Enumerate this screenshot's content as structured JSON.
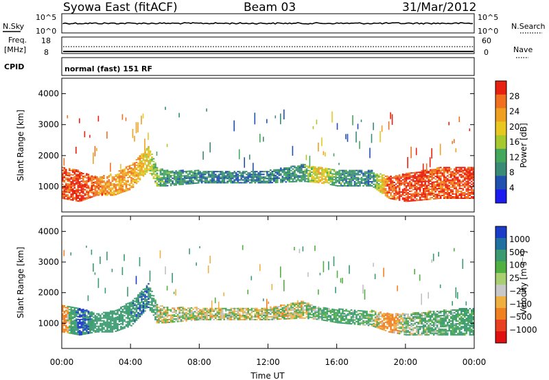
{
  "header": {
    "title": "Syowa East (fitACF)",
    "beam": "Beam 03",
    "date": "31/Mar/2012"
  },
  "top_panels": {
    "nsky_label": "N.Sky",
    "nsky_ticks": [
      "10^5",
      "10^0"
    ],
    "nsearch_label": "N.Search",
    "nsearch_ticks": [
      "10^5",
      "10^0"
    ],
    "freq_label": "Freq.",
    "freq_unit": "[MHz]",
    "freq_ticks": [
      "18",
      "8"
    ],
    "nave_label": "Nave",
    "nave_ticks": [
      "60",
      "0"
    ],
    "cpid_label": "CPID",
    "cpid_value": "normal (fast) 151 RF"
  },
  "colors": {
    "power_scale": [
      "#1c1cf0",
      "#2050b0",
      "#3a8a78",
      "#44a85a",
      "#a8c830",
      "#e8c820",
      "#f0a020",
      "#f07020",
      "#e82010"
    ],
    "velocity_scale": [
      "#1a3cc8",
      "#2070a0",
      "#3a9a70",
      "#50b040",
      "#a8d070",
      "#c8c8c8",
      "#f0b040",
      "#f08020",
      "#e84020",
      "#e01010"
    ],
    "ground_scatter": "#c0c0c0"
  },
  "chart_data": [
    {
      "type": "heatmap",
      "name": "power",
      "ylabel": "Slant Range [km]",
      "yticks": [
        "1000",
        "2000",
        "3000",
        "4000"
      ],
      "ylim": [
        180,
        4500
      ],
      "xlim": [
        0,
        24
      ],
      "colorbar_label": "Power [dB]",
      "colorbar_ticks": [
        "4",
        "8",
        "12",
        "16",
        "20",
        "24",
        "28"
      ],
      "echo_band": {
        "hours": [
          0.0,
          1.0,
          2.0,
          3.0,
          4.0,
          5.0,
          5.5,
          6.0,
          8.0,
          10.0,
          12.0,
          14.0,
          15.0,
          16.0,
          18.0,
          19.0,
          20.0,
          22.0,
          24.0
        ],
        "range_lo": [
          600,
          500,
          700,
          700,
          900,
          1500,
          1000,
          1000,
          1100,
          1100,
          1100,
          1150,
          1100,
          1000,
          1000,
          600,
          500,
          600,
          600
        ],
        "range_hi": [
          1600,
          1500,
          1300,
          1400,
          1700,
          2300,
          1600,
          1500,
          1500,
          1500,
          1500,
          1700,
          1600,
          1500,
          1500,
          1300,
          1400,
          1600,
          1600
        ],
        "power_db": [
          26,
          28,
          24,
          22,
          22,
          18,
          12,
          10,
          8,
          8,
          8,
          10,
          20,
          10,
          8,
          26,
          28,
          26,
          28
        ]
      }
    },
    {
      "type": "heatmap",
      "name": "velocity",
      "ylabel": "Slant Range [km]",
      "yticks": [
        "1000",
        "2000",
        "3000",
        "4000"
      ],
      "ylim": [
        180,
        4500
      ],
      "xlim": [
        0,
        24
      ],
      "xlabel": "Time UT",
      "xticks": [
        "00:00",
        "04:00",
        "08:00",
        "12:00",
        "16:00",
        "20:00",
        "00:00"
      ],
      "colorbar_label": "Velocity [m s⁻¹]",
      "colorbar_ticks": [
        "1000",
        "500",
        "100",
        "25",
        "−25",
        "−100",
        "−500",
        "−1000"
      ],
      "echo_band": {
        "hours": [
          0.0,
          1.0,
          2.0,
          3.0,
          4.0,
          5.0,
          5.5,
          6.0,
          8.0,
          10.0,
          12.0,
          14.0,
          15.0,
          16.0,
          18.0,
          19.0,
          20.0,
          22.0,
          24.0
        ],
        "range_lo": [
          700,
          600,
          700,
          700,
          900,
          1500,
          1000,
          1000,
          1100,
          1100,
          1100,
          1150,
          1100,
          1000,
          900,
          700,
          600,
          600,
          600
        ],
        "range_hi": [
          1600,
          1500,
          1300,
          1400,
          1700,
          2300,
          1600,
          1500,
          1500,
          1500,
          1500,
          1700,
          1500,
          1450,
          1400,
          1300,
          1300,
          1400,
          1500
        ],
        "velocity_ms": [
          -300,
          600,
          300,
          200,
          400,
          500,
          0,
          0,
          0,
          0,
          0,
          0,
          100,
          150,
          80,
          -200,
          60,
          100,
          200
        ]
      }
    }
  ]
}
